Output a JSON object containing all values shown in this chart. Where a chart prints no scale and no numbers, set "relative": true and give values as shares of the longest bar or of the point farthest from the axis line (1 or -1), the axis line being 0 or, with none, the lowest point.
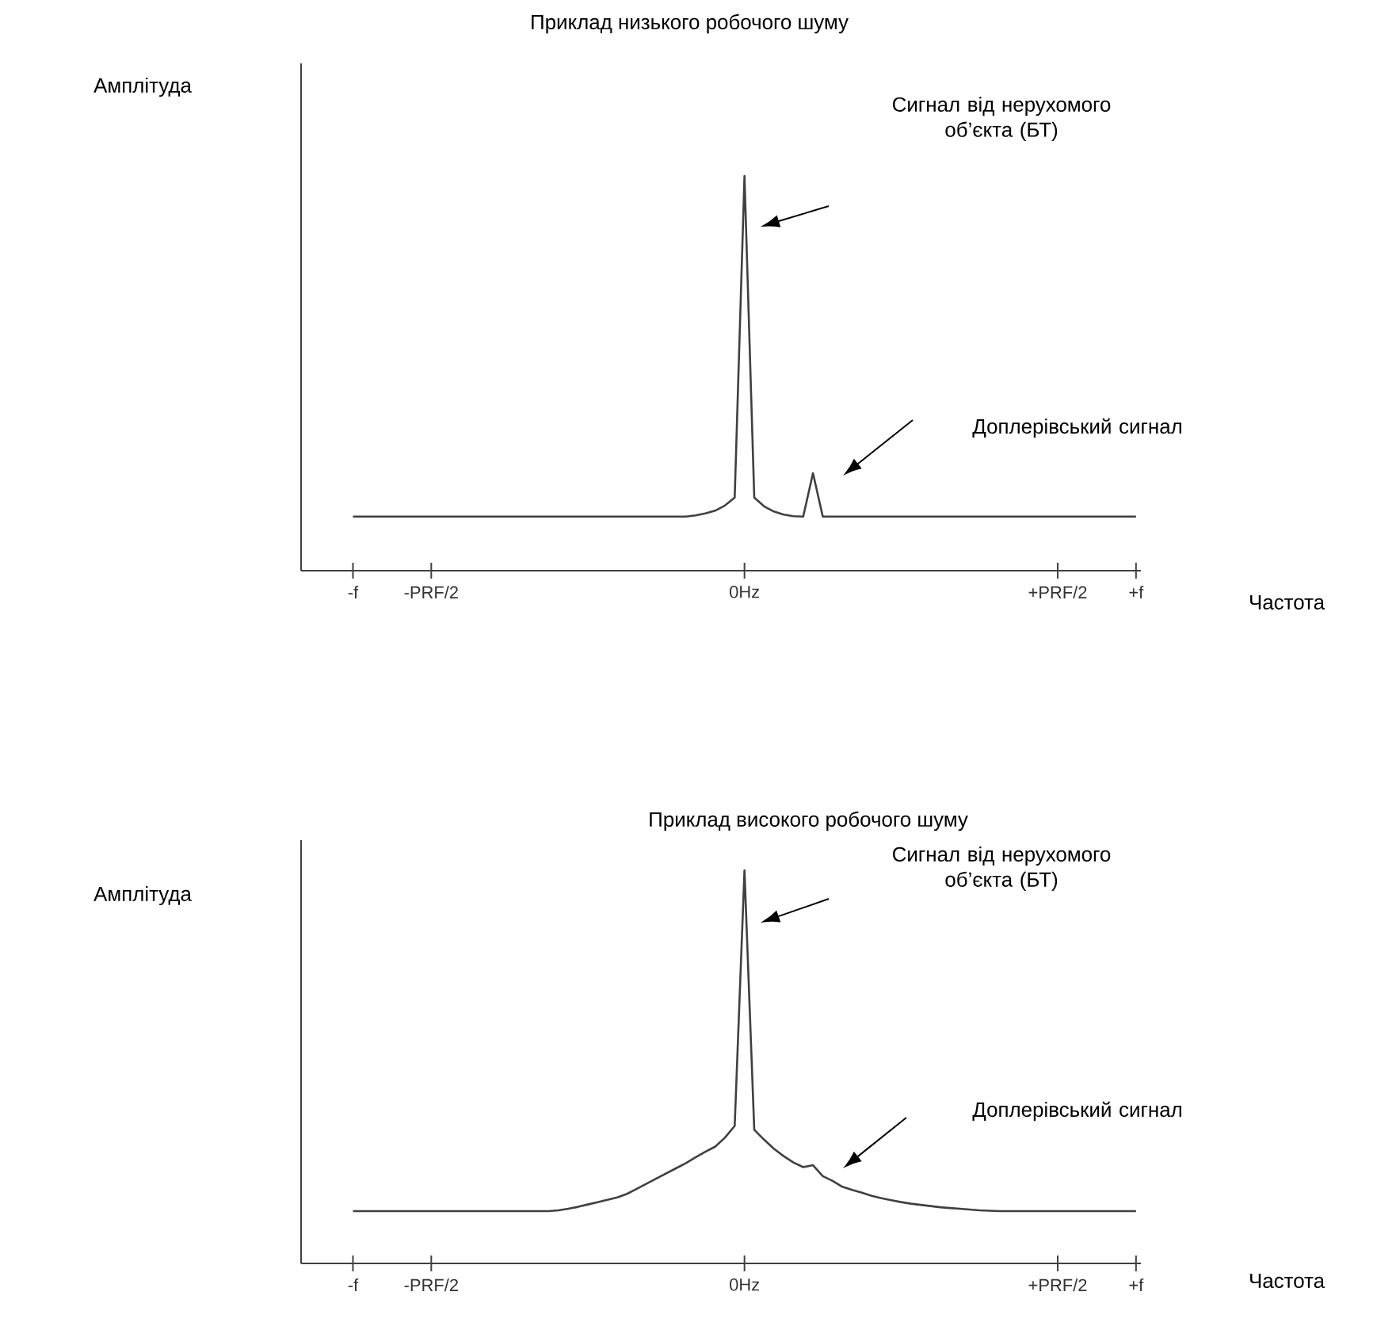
{
  "chart_data": [
    {
      "type": "line",
      "title": "Приклад низького робочого шуму",
      "xlabel": "Частота",
      "ylabel": "Амплітуда",
      "relative": true,
      "marker": "none",
      "categories": [
        "-f",
        null,
        null,
        null,
        null,
        null,
        null,
        null,
        "-PRF/2",
        null,
        null,
        null,
        null,
        null,
        null,
        null,
        null,
        null,
        null,
        null,
        null,
        null,
        null,
        null,
        null,
        null,
        null,
        null,
        null,
        null,
        null,
        null,
        null,
        null,
        null,
        null,
        null,
        null,
        null,
        null,
        "0Hz",
        null,
        null,
        null,
        null,
        null,
        null,
        null,
        null,
        null,
        null,
        null,
        null,
        null,
        null,
        null,
        null,
        null,
        null,
        null,
        null,
        null,
        null,
        null,
        null,
        null,
        null,
        null,
        null,
        null,
        null,
        null,
        "+PRF/2",
        null,
        null,
        null,
        null,
        null,
        null,
        null,
        "+f"
      ],
      "series": [
        {
          "color": "#404040",
          "values": [
            0.137,
            0.137,
            0.137,
            0.137,
            0.137,
            0.137,
            0.137,
            0.137,
            0.137,
            0.137,
            0.137,
            0.137,
            0.137,
            0.137,
            0.137,
            0.137,
            0.137,
            0.137,
            0.137,
            0.137,
            0.137,
            0.137,
            0.137,
            0.137,
            0.137,
            0.137,
            0.137,
            0.137,
            0.137,
            0.137,
            0.137,
            0.137,
            0.137,
            0.137,
            0.137,
            0.14,
            0.145,
            0.152,
            0.165,
            0.185,
            1.0,
            0.185,
            0.163,
            0.15,
            0.142,
            0.138,
            0.137,
            0.247,
            0.137,
            0.137,
            0.137,
            0.137,
            0.137,
            0.137,
            0.137,
            0.137,
            0.137,
            0.137,
            0.137,
            0.137,
            0.137,
            0.137,
            0.137,
            0.137,
            0.137,
            0.137,
            0.137,
            0.137,
            0.137,
            0.137,
            0.137,
            0.137,
            0.137,
            0.137,
            0.137,
            0.137,
            0.137,
            0.137,
            0.137,
            0.137,
            0.137
          ]
        }
      ],
      "annotations": [
        "Сигнал від нерухомого об’єкта (БТ)",
        "Доплерівський сигнал"
      ]
    },
    {
      "type": "line",
      "title": "Приклад високого робочого шуму",
      "xlabel": "Частота",
      "ylabel": "Амплітуда",
      "relative": true,
      "marker": "none",
      "categories": [
        "-f",
        null,
        null,
        null,
        null,
        null,
        null,
        null,
        "-PRF/2",
        null,
        null,
        null,
        null,
        null,
        null,
        null,
        null,
        null,
        null,
        null,
        null,
        null,
        null,
        null,
        null,
        null,
        null,
        null,
        null,
        null,
        null,
        null,
        null,
        null,
        null,
        null,
        null,
        null,
        null,
        null,
        "0Hz",
        null,
        null,
        null,
        null,
        null,
        null,
        null,
        null,
        null,
        null,
        null,
        null,
        null,
        null,
        null,
        null,
        null,
        null,
        null,
        null,
        null,
        null,
        null,
        null,
        null,
        null,
        null,
        null,
        null,
        null,
        null,
        "+PRF/2",
        null,
        null,
        null,
        null,
        null,
        null,
        null,
        "+f"
      ],
      "series": [
        {
          "color": "#404040",
          "values": [
            0.133,
            0.133,
            0.133,
            0.133,
            0.133,
            0.133,
            0.133,
            0.133,
            0.133,
            0.133,
            0.133,
            0.133,
            0.133,
            0.133,
            0.133,
            0.133,
            0.133,
            0.133,
            0.133,
            0.133,
            0.133,
            0.135,
            0.139,
            0.144,
            0.15,
            0.156,
            0.162,
            0.168,
            0.177,
            0.19,
            0.203,
            0.216,
            0.229,
            0.242,
            0.255,
            0.27,
            0.284,
            0.297,
            0.32,
            0.35,
            1.0,
            0.34,
            0.315,
            0.292,
            0.273,
            0.257,
            0.245,
            0.25,
            0.222,
            0.21,
            0.195,
            0.187,
            0.18,
            0.172,
            0.166,
            0.161,
            0.156,
            0.152,
            0.149,
            0.146,
            0.143,
            0.141,
            0.139,
            0.137,
            0.135,
            0.134,
            0.133,
            0.133,
            0.133,
            0.133,
            0.133,
            0.133,
            0.133,
            0.133,
            0.133,
            0.133,
            0.133,
            0.133,
            0.133,
            0.133,
            0.133
          ]
        }
      ],
      "annotations": [
        "Сигнал від нерухомого об’єкта (БТ)",
        "Доплерівський сигнал"
      ]
    }
  ]
}
